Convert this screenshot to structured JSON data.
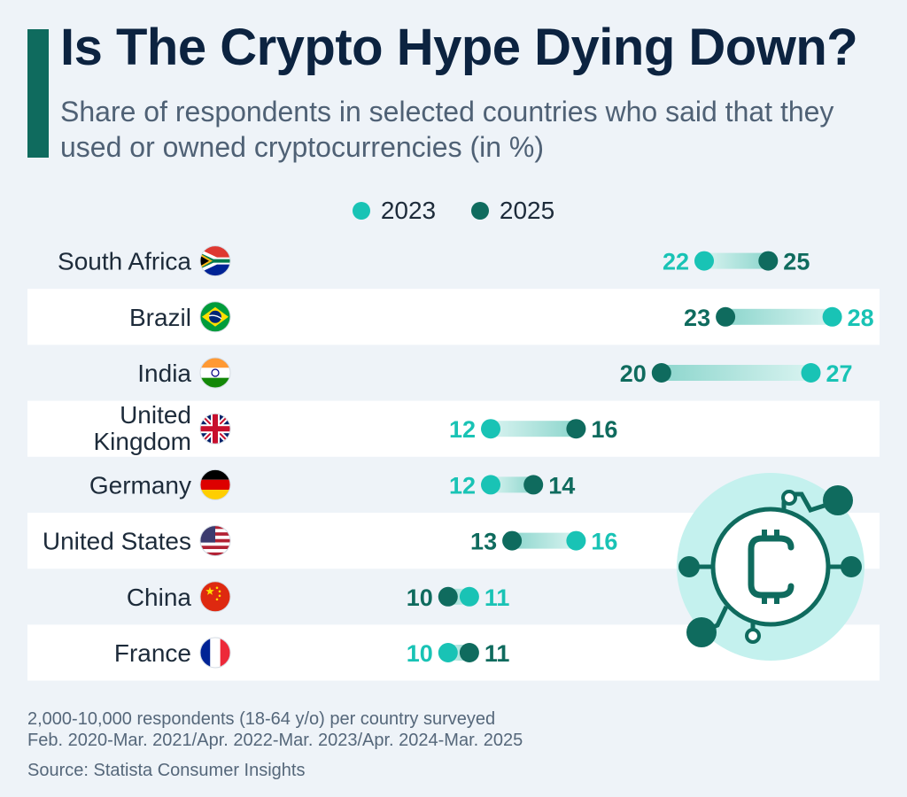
{
  "header": {
    "title": "Is The Crypto Hype Dying Down?",
    "subtitle": "Share of respondents in selected countries who said that they used or owned cryptocurrencies (in %)"
  },
  "colors": {
    "series_2023": "#19c3b5",
    "series_2025": "#0f6b5e",
    "title": "#0c2340",
    "accent": "#0f6b5e"
  },
  "footer": {
    "note_line1": "2,000-10,000 respondents (18-64 y/o) per country surveyed",
    "note_line2": "Feb. 2020-Mar. 2021/Apr. 2022-Mar. 2023/Apr. 2024-Mar. 2025",
    "source": "Source: Statista Consumer Insights"
  },
  "chart_data": {
    "type": "dumbbell",
    "legend_position": "top-center",
    "series": [
      {
        "name": "2023",
        "values": [
          22,
          28,
          27,
          12,
          12,
          16,
          11,
          10
        ]
      },
      {
        "name": "2025",
        "values": [
          25,
          23,
          20,
          16,
          14,
          13,
          10,
          11
        ]
      }
    ],
    "categories": [
      {
        "label": "South Africa",
        "flag": "south-africa-flag"
      },
      {
        "label": "Brazil",
        "flag": "brazil-flag"
      },
      {
        "label": "India",
        "flag": "india-flag"
      },
      {
        "label": "United Kingdom",
        "flag": "uk-flag"
      },
      {
        "label": "Germany",
        "flag": "germany-flag"
      },
      {
        "label": "United States",
        "flag": "us-flag"
      },
      {
        "label": "China",
        "flag": "china-flag"
      },
      {
        "label": "France",
        "flag": "france-flag"
      }
    ],
    "icon": "bitcoin-circuit-icon"
  }
}
